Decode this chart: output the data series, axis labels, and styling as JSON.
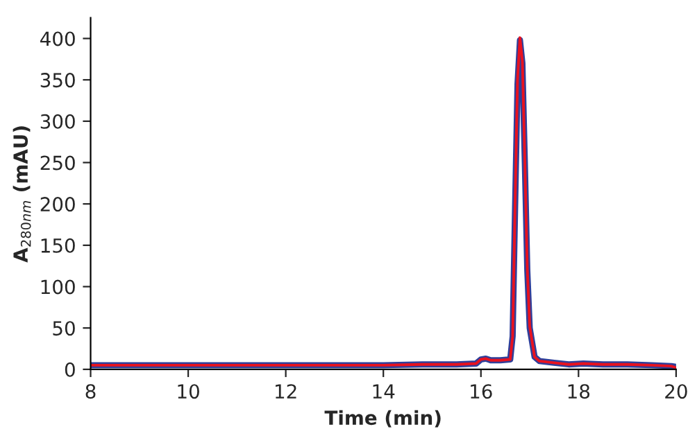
{
  "chart_data": {
    "type": "line",
    "xlabel": "Time (min)",
    "ylabel": "A$_{280nm}$ (mAU)",
    "xlim": [
      8,
      20
    ],
    "xticks": [
      8,
      10,
      12,
      14,
      16,
      18,
      20
    ],
    "ylim": [
      0,
      425
    ],
    "yticks": [
      0,
      50,
      100,
      150,
      200,
      250,
      300,
      350,
      400
    ],
    "grid": false,
    "marker": "none",
    "line_style": "solid",
    "series": [
      {
        "color": "#2f3f9a",
        "x": [
          8,
          10,
          12,
          14,
          14.8,
          15.5,
          15.9,
          16.0,
          16.1,
          16.2,
          16.4,
          16.6,
          16.65,
          16.7,
          16.75,
          16.8,
          16.85,
          16.9,
          16.95,
          17.0,
          17.1,
          17.2,
          17.5,
          17.8,
          18.1,
          18.5,
          19.0,
          19.5,
          19.9,
          20
        ],
        "values": [
          5,
          5,
          5,
          5,
          6,
          6,
          7,
          12,
          13,
          11,
          11,
          12,
          40,
          195,
          345,
          398,
          370,
          250,
          120,
          50,
          15,
          10,
          8,
          6,
          7,
          6,
          6,
          5,
          4,
          3
        ]
      },
      {
        "color": "#e8121f",
        "x": [
          8,
          10,
          12,
          14,
          14.8,
          15.5,
          15.9,
          16.0,
          16.1,
          16.2,
          16.4,
          16.6,
          16.65,
          16.7,
          16.75,
          16.8,
          16.85,
          16.9,
          16.95,
          17.0,
          17.1,
          17.2,
          17.5,
          17.8,
          18.1,
          18.5,
          19.0,
          19.5,
          19.9,
          20
        ],
        "values": [
          5,
          5,
          5,
          5,
          6,
          6,
          7,
          12,
          13,
          11,
          11,
          12,
          40,
          200,
          350,
          401,
          372,
          252,
          122,
          52,
          15,
          10,
          8,
          6,
          7,
          6,
          6,
          5,
          4,
          2
        ]
      }
    ]
  }
}
